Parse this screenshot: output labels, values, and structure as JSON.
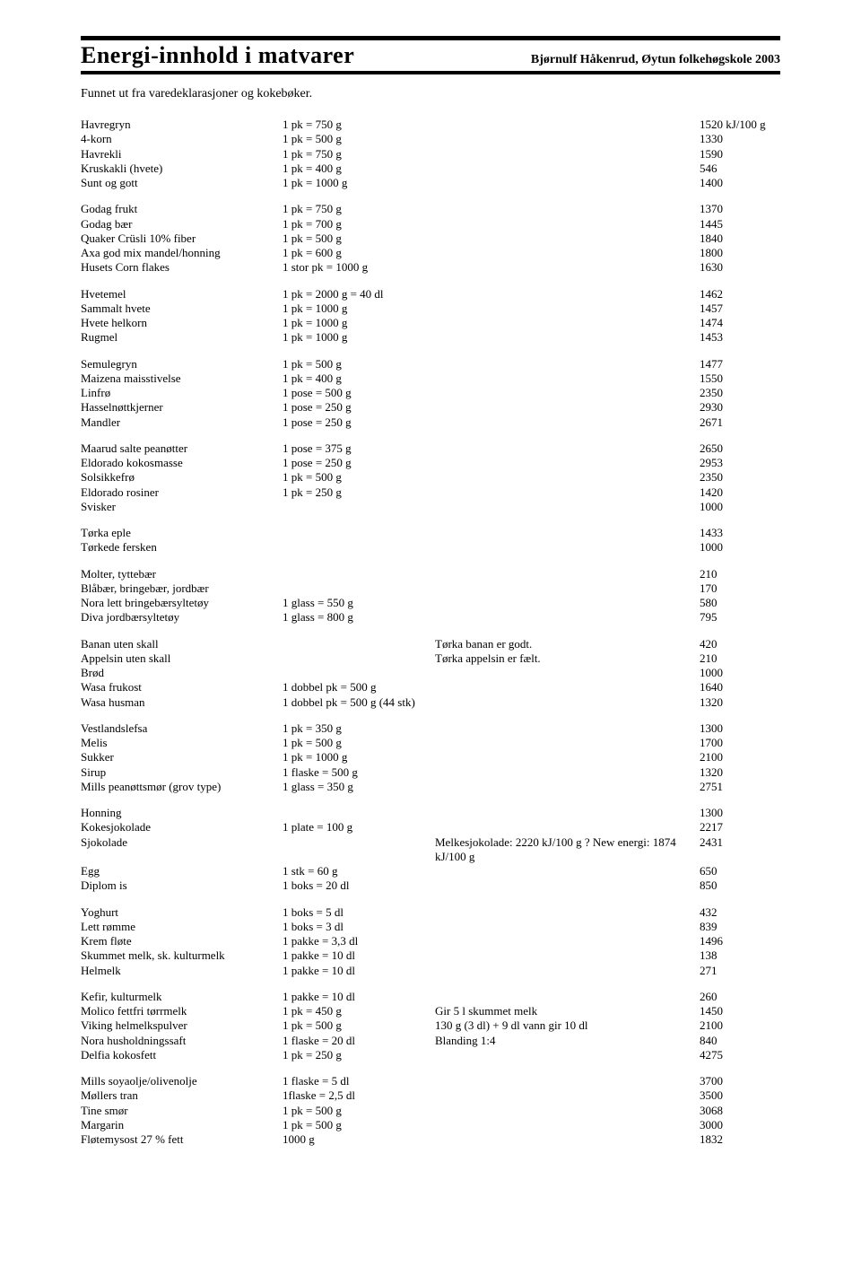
{
  "title": "Energi-innhold  i  matvarer",
  "subtitle": "Bjørnulf Håkenrud, Øytun folkehøgskole 2003",
  "intro": "Funnet ut fra varedeklarasjoner og kokebøker.",
  "groups": [
    [
      {
        "name": "Havregryn",
        "pack": "1 pk = 750 g",
        "note": "",
        "val": "1520 kJ/100 g"
      },
      {
        "name": "4-korn",
        "pack": "1 pk = 500 g",
        "note": "",
        "val": "1330"
      },
      {
        "name": "Havrekli",
        "pack": "1 pk = 750 g",
        "note": "",
        "val": "1590"
      },
      {
        "name": "Kruskakli (hvete)",
        "pack": "1 pk = 400 g",
        "note": "",
        "val": "546"
      },
      {
        "name": "Sunt og gott",
        "pack": "1 pk = 1000 g",
        "note": "",
        "val": "1400"
      }
    ],
    [
      {
        "name": "Godag frukt",
        "pack": "1 pk = 750 g",
        "note": "",
        "val": "1370"
      },
      {
        "name": "Godag bær",
        "pack": "1 pk = 700 g",
        "note": "",
        "val": "1445"
      },
      {
        "name": "Quaker Crüsli 10% fiber",
        "pack": "1 pk = 500 g",
        "note": "",
        "val": "1840"
      },
      {
        "name": "Axa god mix mandel/honning",
        "pack": "1 pk = 600 g",
        "note": "",
        "val": "1800"
      },
      {
        "name": "Husets Corn flakes",
        "pack": "1 stor pk = 1000 g",
        "note": "",
        "val": "1630"
      }
    ],
    [
      {
        "name": "Hvetemel",
        "pack": "1 pk = 2000 g = 40 dl",
        "note": "",
        "val": "1462"
      },
      {
        "name": "Sammalt hvete",
        "pack": "1 pk = 1000 g",
        "note": "",
        "val": "1457"
      },
      {
        "name": "Hvete helkorn",
        "pack": "1 pk = 1000 g",
        "note": "",
        "val": "1474"
      },
      {
        "name": "Rugmel",
        "pack": "1 pk = 1000 g",
        "note": "",
        "val": "1453"
      }
    ],
    [
      {
        "name": "Semulegryn",
        "pack": "1 pk = 500 g",
        "note": "",
        "val": "1477"
      },
      {
        "name": "Maizena maisstivelse",
        "pack": "1 pk = 400 g",
        "note": "",
        "val": "1550"
      },
      {
        "name": "Linfrø",
        "pack": "1 pose = 500 g",
        "note": "",
        "val": "2350"
      },
      {
        "name": "Hasselnøttkjerner",
        "pack": "1 pose = 250 g",
        "note": "",
        "val": "2930"
      },
      {
        "name": "Mandler",
        "pack": "1 pose = 250 g",
        "note": "",
        "val": "2671"
      }
    ],
    [
      {
        "name": "Maarud salte peanøtter",
        "pack": "1 pose = 375 g",
        "note": "",
        "val": "2650"
      },
      {
        "name": "Eldorado kokosmasse",
        "pack": "1 pose = 250 g",
        "note": "",
        "val": "2953"
      },
      {
        "name": "Solsikkefrø",
        "pack": "1 pk = 500 g",
        "note": "",
        "val": "2350"
      },
      {
        "name": "Eldorado rosiner",
        "pack": "1 pk = 250 g",
        "note": "",
        "val": "1420"
      },
      {
        "name": "Svisker",
        "pack": "",
        "note": "",
        "val": "1000"
      }
    ],
    [
      {
        "name": "Tørka eple",
        "pack": "",
        "note": "",
        "val": "1433"
      },
      {
        "name": "Tørkede fersken",
        "pack": "",
        "note": "",
        "val": "1000"
      }
    ],
    [
      {
        "name": "Molter, tyttebær",
        "pack": "",
        "note": "",
        "val": "210"
      },
      {
        "name": "Blåbær, bringebær, jordbær",
        "pack": "",
        "note": "",
        "val": "170"
      },
      {
        "name": "Nora lett bringebærsyltetøy",
        "pack": "1 glass = 550 g",
        "note": "",
        "val": "580"
      },
      {
        "name": "Diva jordbærsyltetøy",
        "pack": "1 glass = 800 g",
        "note": "",
        "val": "795"
      }
    ],
    [
      {
        "name": "Banan uten skall",
        "pack": "",
        "note": "Tørka banan er godt.",
        "val": "420"
      },
      {
        "name": "Appelsin uten skall",
        "pack": "",
        "note": "Tørka appelsin er fælt.",
        "val": "210"
      },
      {
        "name": "Brød",
        "pack": "",
        "note": "",
        "val": "1000"
      },
      {
        "name": "Wasa frukost",
        "pack": "1 dobbel pk = 500 g",
        "note": "",
        "val": "1640"
      },
      {
        "name": "Wasa husman",
        "pack": "1 dobbel pk = 500 g (44 stk)",
        "note": "",
        "val": "1320"
      }
    ],
    [
      {
        "name": "Vestlandslefsa",
        "pack": "1 pk = 350 g",
        "note": "",
        "val": "1300"
      },
      {
        "name": "Melis",
        "pack": "1 pk = 500 g",
        "note": "",
        "val": "1700"
      },
      {
        "name": "Sukker",
        "pack": "1 pk = 1000 g",
        "note": "",
        "val": "2100"
      },
      {
        "name": "Sirup",
        "pack": "1 flaske = 500 g",
        "note": "",
        "val": "1320"
      },
      {
        "name": "Mills peanøttsmør (grov type)",
        "pack": "1 glass = 350 g",
        "note": "",
        "val": "2751"
      }
    ],
    [
      {
        "name": "Honning",
        "pack": "",
        "note": "",
        "val": "1300"
      },
      {
        "name": "Kokesjokolade",
        "pack": "1 plate = 100 g",
        "note": "",
        "val": "2217"
      },
      {
        "name": "Sjokolade",
        "pack": "",
        "note": "Melkesjokolade: 2220 kJ/100 g ?   New energi: 1874 kJ/100 g",
        "val": "2431"
      },
      {
        "name": "Egg",
        "pack": "1 stk = 60 g",
        "note": "",
        "val": "650"
      },
      {
        "name": "Diplom is",
        "pack": "1 boks = 20 dl",
        "note": "",
        "val": "850"
      }
    ],
    [
      {
        "name": "Yoghurt",
        "pack": "1 boks = 5 dl",
        "note": "",
        "val": "432"
      },
      {
        "name": "Lett rømme",
        "pack": "1 boks = 3 dl",
        "note": "",
        "val": "839"
      },
      {
        "name": "Krem fløte",
        "pack": "1 pakke = 3,3 dl",
        "note": "",
        "val": "1496"
      },
      {
        "name": "Skummet melk, sk. kulturmelk",
        "pack": "1 pakke = 10 dl",
        "note": "",
        "val": "138"
      },
      {
        "name": "Helmelk",
        "pack": "1 pakke = 10 dl",
        "note": "",
        "val": "271"
      }
    ],
    [
      {
        "name": "Kefir, kulturmelk",
        "pack": "1 pakke = 10 dl",
        "note": "",
        "val": "260"
      },
      {
        "name": "Molico fettfri tørrmelk",
        "pack": "1 pk = 450 g",
        "note": "Gir 5 l skummet melk",
        "val": "1450"
      },
      {
        "name": "Viking helmelkspulver",
        "pack": "1 pk = 500 g",
        "note": "130 g (3 dl) + 9 dl vann gir 10 dl",
        "val": "2100"
      },
      {
        "name": "Nora husholdningssaft",
        "pack": "1 flaske = 20 dl",
        "note": "Blanding 1:4",
        "val": "840"
      },
      {
        "name": "Delfia kokosfett",
        "pack": "1 pk = 250 g",
        "note": "",
        "val": "4275"
      }
    ],
    [
      {
        "name": "Mills soyaolje/olivenolje",
        "pack": "1 flaske = 5 dl",
        "note": "",
        "val": "3700"
      },
      {
        "name": "Møllers tran",
        "pack": "1flaske = 2,5 dl",
        "note": "",
        "val": "3500"
      },
      {
        "name": "Tine smør",
        "pack": "1 pk = 500 g",
        "note": "",
        "val": "3068"
      },
      {
        "name": "Margarin",
        "pack": "1 pk = 500 g",
        "note": "",
        "val": "3000"
      },
      {
        "name": "Fløtemysost 27 % fett",
        "pack": "1000 g",
        "note": "",
        "val": "1832"
      }
    ]
  ]
}
